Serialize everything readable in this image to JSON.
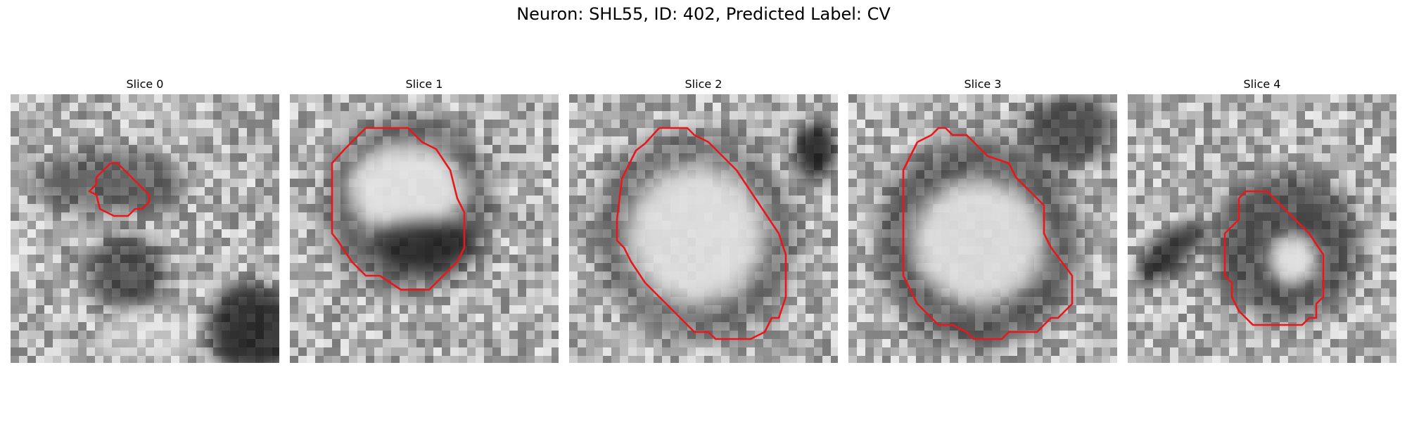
{
  "figure": {
    "title": "Neuron: SHL55, ID: 402, Predicted Label: CV"
  },
  "panels": [
    {
      "title": "Slice 0"
    },
    {
      "title": "Slice 1"
    },
    {
      "title": "Slice 2"
    },
    {
      "title": "Slice 3"
    },
    {
      "title": "Slice 4"
    }
  ],
  "colors": {
    "contour": "#e8181a",
    "background": "#ffffff"
  }
}
